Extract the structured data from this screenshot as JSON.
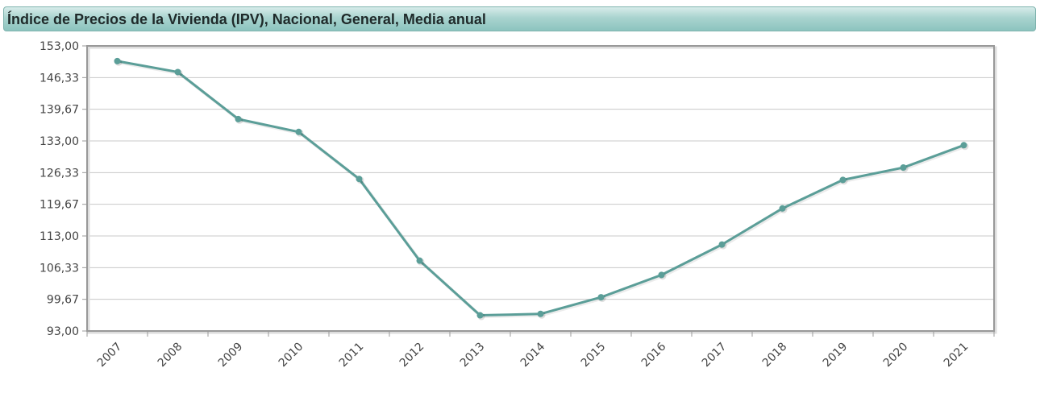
{
  "title": "Índice de Precios de la Vivienda (IPV), Nacional, General, Media anual",
  "colors": {
    "line": "#5b9e98",
    "marker": "#5b9e98",
    "grid": "#c8c8c8",
    "axis": "#999999"
  },
  "chart_data": {
    "type": "line",
    "title": "Índice de Precios de la Vivienda (IPV), Nacional, General, Media anual",
    "xlabel": "",
    "ylabel": "",
    "categories": [
      "2007",
      "2008",
      "2009",
      "2010",
      "2011",
      "2012",
      "2013",
      "2014",
      "2015",
      "2016",
      "2017",
      "2018",
      "2019",
      "2020",
      "2021"
    ],
    "series": [
      {
        "name": "",
        "values": [
          149.8,
          147.5,
          137.6,
          134.9,
          125.0,
          107.8,
          96.3,
          96.6,
          100.1,
          104.8,
          111.2,
          118.8,
          124.8,
          127.4,
          132.1
        ]
      }
    ],
    "ylim": [
      93.0,
      153.0
    ],
    "yticks": [
      "93,00",
      "99,67",
      "106,33",
      "113,00",
      "119,67",
      "126,33",
      "133,00",
      "139,67",
      "146,33",
      "153,00"
    ],
    "grid": true,
    "legend": "none"
  }
}
